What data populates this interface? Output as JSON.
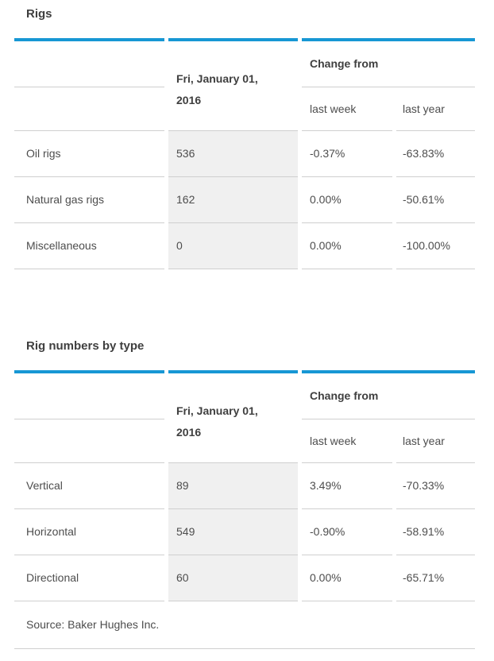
{
  "colors": {
    "accent": "#1797d4",
    "value_cell_bg": "#f0f0f0",
    "divider": "#cfcfcf"
  },
  "tables": [
    {
      "title": "Rigs",
      "date_header": "Fri, January 01, 2016",
      "change_from_label": "Change from",
      "sub_headers": [
        "last week",
        "last year"
      ],
      "rows": [
        {
          "label": "Oil rigs",
          "value": "536",
          "last_week": "-0.37%",
          "last_year": "-63.83%"
        },
        {
          "label": "Natural gas rigs",
          "value": "162",
          "last_week": "0.00%",
          "last_year": "-50.61%"
        },
        {
          "label": "Miscellaneous",
          "value": "0",
          "last_week": "0.00%",
          "last_year": "-100.00%"
        }
      ]
    },
    {
      "title": "Rig numbers by type",
      "date_header": "Fri, January 01, 2016",
      "change_from_label": "Change from",
      "sub_headers": [
        "last week",
        "last year"
      ],
      "rows": [
        {
          "label": "Vertical",
          "value": "89",
          "last_week": "3.49%",
          "last_year": "-70.33%"
        },
        {
          "label": "Horizontal",
          "value": "549",
          "last_week": "-0.90%",
          "last_year": "-58.91%"
        },
        {
          "label": "Directional",
          "value": "60",
          "last_week": "0.00%",
          "last_year": "-65.71%"
        }
      ],
      "source": "Source: Baker Hughes Inc."
    }
  ]
}
